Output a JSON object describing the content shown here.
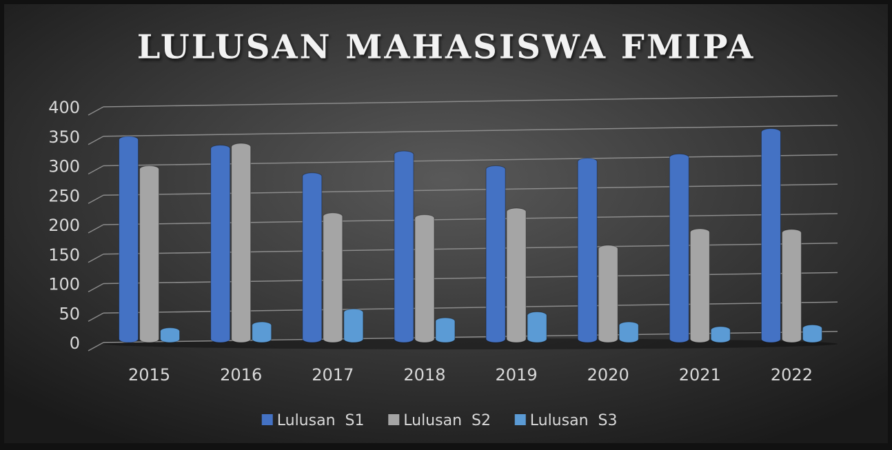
{
  "chart_data": {
    "type": "bar",
    "title": "LULUSAN MAHASISWA FMIPA",
    "categories": [
      "2015",
      "2016",
      "2017",
      "2018",
      "2019",
      "2020",
      "2021",
      "2022"
    ],
    "series": [
      {
        "name": "Lulusan  S1",
        "color": "#4472c4",
        "values": [
          350,
          335,
          288,
          325,
          300,
          313,
          320,
          363
        ]
      },
      {
        "name": "Lulusan  S2",
        "color": "#a5a5a5",
        "values": [
          300,
          338,
          220,
          217,
          228,
          165,
          193,
          192
        ]
      },
      {
        "name": "Lulusan  S3",
        "color": "#5b9bd5",
        "values": [
          25,
          35,
          57,
          42,
          52,
          35,
          27,
          30
        ]
      }
    ],
    "ylim": [
      0,
      400
    ],
    "yticks": [
      0,
      50,
      100,
      150,
      200,
      250,
      300,
      350,
      400
    ],
    "grid": true,
    "legend": "bottom"
  }
}
